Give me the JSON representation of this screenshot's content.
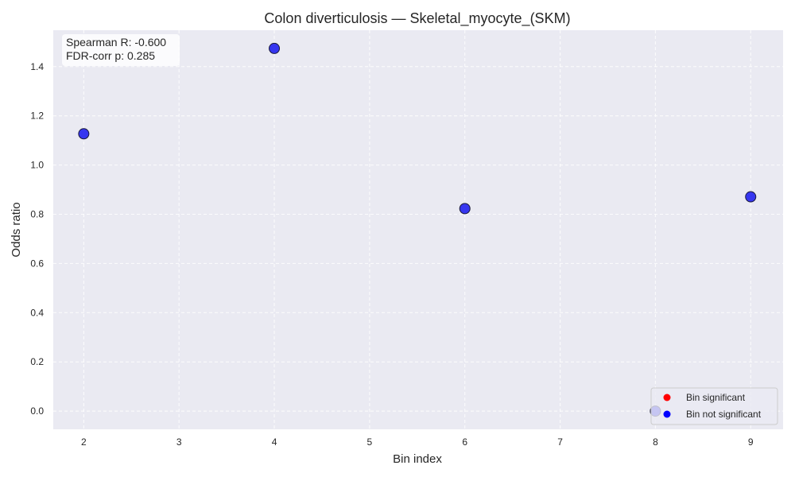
{
  "chart_data": {
    "type": "scatter",
    "title": "Colon diverticulosis — Skeletal_myocyte_(SKM)",
    "xlabel": "Bin index",
    "ylabel": "Odds ratio",
    "xlim": [
      1.68,
      9.34
    ],
    "ylim": [
      -0.074,
      1.548
    ],
    "xticks": [
      2,
      3,
      4,
      5,
      6,
      7,
      8,
      9
    ],
    "yticks": [
      0.0,
      0.2,
      0.4,
      0.6,
      0.8,
      1.0,
      1.2,
      1.4
    ],
    "grid": true,
    "annotation": {
      "line1": "Spearman R: -0.600",
      "line2": "FDR-corr p: 0.285",
      "position": "top-left"
    },
    "legend": {
      "position": "bottom-right",
      "entries": [
        {
          "label": "Bin significant",
          "color": "#ff0000"
        },
        {
          "label": "Bin not significant",
          "color": "#0000ff"
        }
      ]
    },
    "series": [
      {
        "name": "Bin not significant",
        "color": "#2222ee",
        "x": [
          2,
          4,
          6,
          8,
          9
        ],
        "y": [
          1.127,
          1.474,
          0.823,
          0.0,
          0.871
        ]
      }
    ]
  },
  "colors": {
    "axes_background": "#eaeaf2",
    "grid": "#ffffff",
    "marker_fill": "#2222ee",
    "marker_edge": "#1a1a3a"
  }
}
